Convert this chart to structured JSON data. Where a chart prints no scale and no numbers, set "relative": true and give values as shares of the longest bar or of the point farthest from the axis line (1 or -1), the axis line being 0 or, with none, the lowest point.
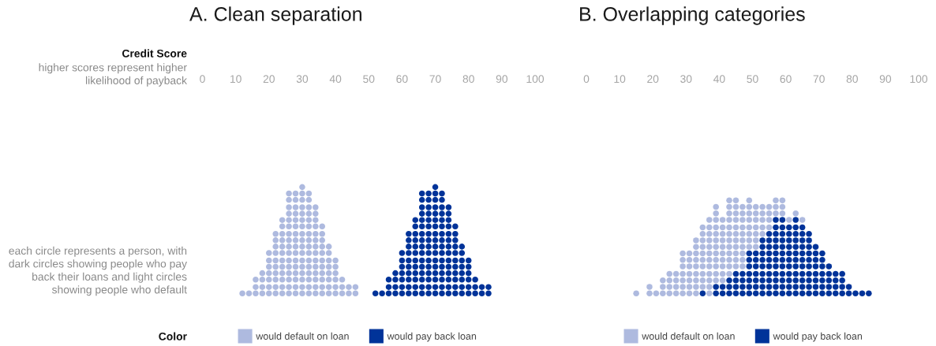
{
  "chart_data": [
    {
      "type": "scatter",
      "title": "A. Clean separation",
      "xlabel": "Credit Score",
      "annotations": [
        "higher scores represent higher\nlikelihood of payback",
        "each circle represents a person, with\ndark circles showing people who pay\nback their loans and light circles\nshowing people who default"
      ],
      "legend_title": "Color",
      "legend": "bottom",
      "marker": "circle",
      "tick_labels": "x",
      "relative": true,
      "xlim": [
        0,
        100
      ],
      "xticks": [
        0,
        10,
        20,
        30,
        40,
        50,
        60,
        70,
        80,
        90,
        100
      ],
      "series": [
        {
          "name": "would default on loan",
          "color": "#aebadf",
          "x": [
            12,
            14,
            16,
            16,
            16,
            18,
            18,
            18,
            18,
            20,
            20,
            20,
            20,
            20,
            20,
            20,
            22,
            22,
            22,
            22,
            22,
            22,
            22,
            22,
            22,
            22,
            24,
            24,
            24,
            24,
            24,
            24,
            24,
            24,
            24,
            24,
            24,
            24,
            26,
            26,
            26,
            26,
            26,
            26,
            26,
            26,
            26,
            26,
            26,
            26,
            26,
            26,
            26,
            26,
            28,
            28,
            28,
            28,
            28,
            28,
            28,
            28,
            28,
            28,
            28,
            28,
            28,
            28,
            28,
            28,
            30,
            30,
            30,
            30,
            30,
            30,
            30,
            30,
            30,
            30,
            30,
            30,
            30,
            30,
            30,
            30,
            30,
            32,
            32,
            32,
            32,
            32,
            32,
            32,
            32,
            32,
            32,
            32,
            32,
            32,
            32,
            32,
            32,
            34,
            34,
            34,
            34,
            34,
            34,
            34,
            34,
            34,
            34,
            34,
            34,
            34,
            34,
            36,
            36,
            36,
            36,
            36,
            36,
            36,
            36,
            36,
            36,
            36,
            38,
            38,
            38,
            38,
            38,
            38,
            38,
            38,
            40,
            40,
            40,
            40,
            40,
            40,
            42,
            42,
            42,
            44,
            44,
            46,
            46
          ],
          "values": [
            0,
            0,
            0,
            0.06,
            0.13,
            0,
            0.06,
            0.13,
            0.19,
            0,
            0.06,
            0.13,
            0.19,
            0.25,
            0.31,
            0.38,
            0,
            0.06,
            0.13,
            0.19,
            0.25,
            0.31,
            0.38,
            0.44,
            0.5,
            0.56,
            0,
            0.06,
            0.13,
            0.19,
            0.25,
            0.31,
            0.38,
            0.44,
            0.5,
            0.56,
            0.63,
            0.69,
            0,
            0.06,
            0.13,
            0.19,
            0.25,
            0.31,
            0.38,
            0.44,
            0.5,
            0.56,
            0.63,
            0.69,
            0.75,
            0.81,
            0.88,
            0.94,
            0,
            0.06,
            0.13,
            0.19,
            0.25,
            0.31,
            0.38,
            0.44,
            0.5,
            0.56,
            0.63,
            0.69,
            0.75,
            0.81,
            0.88,
            0.94,
            0,
            0.06,
            0.13,
            0.19,
            0.25,
            0.31,
            0.38,
            0.44,
            0.5,
            0.56,
            0.63,
            0.69,
            0.75,
            0.81,
            0.88,
            0.94,
            1,
            0,
            0.06,
            0.13,
            0.19,
            0.25,
            0.31,
            0.38,
            0.44,
            0.5,
            0.56,
            0.63,
            0.69,
            0.75,
            0.81,
            0.88,
            0.94,
            0,
            0.06,
            0.13,
            0.19,
            0.25,
            0.31,
            0.38,
            0.44,
            0.5,
            0.56,
            0.63,
            0.69,
            0.75,
            0.81,
            0,
            0.06,
            0.13,
            0.19,
            0.25,
            0.31,
            0.38,
            0.44,
            0.5,
            0.56,
            0.63,
            0,
            0.06,
            0.13,
            0.19,
            0.25,
            0.31,
            0.38,
            0.44,
            0,
            0.06,
            0.13,
            0.19,
            0.25,
            0.31,
            0,
            0.06,
            0.13,
            0,
            0.06,
            0,
            0.06
          ]
        },
        {
          "name": "would pay back loan",
          "color": "#003399",
          "x": [
            52,
            54,
            56,
            56,
            56,
            58,
            58,
            58,
            58,
            60,
            60,
            60,
            60,
            60,
            60,
            60,
            62,
            62,
            62,
            62,
            62,
            62,
            62,
            62,
            62,
            62,
            64,
            64,
            64,
            64,
            64,
            64,
            64,
            64,
            64,
            64,
            64,
            64,
            66,
            66,
            66,
            66,
            66,
            66,
            66,
            66,
            66,
            66,
            66,
            66,
            66,
            66,
            66,
            66,
            68,
            68,
            68,
            68,
            68,
            68,
            68,
            68,
            68,
            68,
            68,
            68,
            68,
            68,
            68,
            68,
            70,
            70,
            70,
            70,
            70,
            70,
            70,
            70,
            70,
            70,
            70,
            70,
            70,
            70,
            70,
            70,
            70,
            72,
            72,
            72,
            72,
            72,
            72,
            72,
            72,
            72,
            72,
            72,
            72,
            72,
            72,
            72,
            72,
            74,
            74,
            74,
            74,
            74,
            74,
            74,
            74,
            74,
            74,
            74,
            74,
            74,
            74,
            76,
            76,
            76,
            76,
            76,
            76,
            76,
            76,
            76,
            76,
            76,
            78,
            78,
            78,
            78,
            78,
            78,
            78,
            78,
            80,
            80,
            80,
            80,
            80,
            80,
            82,
            82,
            82,
            84,
            84,
            86,
            86
          ],
          "values": [
            0,
            0,
            0,
            0.06,
            0.13,
            0,
            0.06,
            0.13,
            0.19,
            0,
            0.06,
            0.13,
            0.19,
            0.25,
            0.31,
            0.38,
            0,
            0.06,
            0.13,
            0.19,
            0.25,
            0.31,
            0.38,
            0.44,
            0.5,
            0.56,
            0,
            0.06,
            0.13,
            0.19,
            0.25,
            0.31,
            0.38,
            0.44,
            0.5,
            0.56,
            0.63,
            0.69,
            0,
            0.06,
            0.13,
            0.19,
            0.25,
            0.31,
            0.38,
            0.44,
            0.5,
            0.56,
            0.63,
            0.69,
            0.75,
            0.81,
            0.88,
            0.94,
            0,
            0.06,
            0.13,
            0.19,
            0.25,
            0.31,
            0.38,
            0.44,
            0.5,
            0.56,
            0.63,
            0.69,
            0.75,
            0.81,
            0.88,
            0.94,
            0,
            0.06,
            0.13,
            0.19,
            0.25,
            0.31,
            0.38,
            0.44,
            0.5,
            0.56,
            0.63,
            0.69,
            0.75,
            0.81,
            0.88,
            0.94,
            1,
            0,
            0.06,
            0.13,
            0.19,
            0.25,
            0.31,
            0.38,
            0.44,
            0.5,
            0.56,
            0.63,
            0.69,
            0.75,
            0.81,
            0.88,
            0.94,
            0,
            0.06,
            0.13,
            0.19,
            0.25,
            0.31,
            0.38,
            0.44,
            0.5,
            0.56,
            0.63,
            0.69,
            0.75,
            0.81,
            0,
            0.06,
            0.13,
            0.19,
            0.25,
            0.31,
            0.38,
            0.44,
            0.5,
            0.56,
            0.63,
            0,
            0.06,
            0.13,
            0.19,
            0.25,
            0.31,
            0.38,
            0.44,
            0,
            0.06,
            0.13,
            0.19,
            0.25,
            0.31,
            0,
            0.06,
            0.13,
            0,
            0.06,
            0,
            0.06
          ]
        }
      ]
    },
    {
      "type": "scatter",
      "title": "B. Overlapping categories",
      "legend": "bottom",
      "marker": "circle",
      "tick_labels": "x",
      "relative": true,
      "xlim": [
        0,
        100
      ],
      "xticks": [
        0,
        10,
        20,
        30,
        40,
        50,
        60,
        70,
        80,
        90,
        100
      ],
      "series": [
        {
          "name": "would default on loan",
          "color": "#aebadf",
          "x": [
            15,
            19,
            19,
            21,
            23,
            23,
            23,
            25,
            25,
            25,
            25,
            27,
            27,
            27,
            27,
            29,
            29,
            29,
            29,
            29,
            29,
            29,
            31,
            31,
            31,
            31,
            31,
            31,
            31,
            33,
            33,
            33,
            33,
            33,
            33,
            33,
            33,
            33,
            35,
            35,
            35,
            35,
            35,
            35,
            35,
            35,
            35,
            35,
            37,
            37,
            37,
            37,
            37,
            37,
            37,
            37,
            37,
            37,
            37,
            37,
            39,
            39,
            39,
            39,
            39,
            39,
            39,
            39,
            39,
            39,
            39,
            39,
            41,
            41,
            41,
            41,
            41,
            41,
            41,
            41,
            41,
            41,
            43,
            43,
            43,
            43,
            43,
            43,
            43,
            43,
            43,
            43,
            43,
            43,
            45,
            45,
            45,
            45,
            45,
            45,
            45,
            45,
            45,
            45,
            45,
            47,
            47,
            47,
            47,
            47,
            47,
            47,
            47,
            47,
            47,
            49,
            49,
            49,
            49,
            49,
            49,
            49,
            49,
            51,
            51,
            51,
            51,
            51,
            51,
            51,
            53,
            53,
            53,
            53,
            53,
            55,
            55,
            55,
            55,
            57,
            57,
            57,
            59,
            59,
            59,
            61,
            63,
            65
          ],
          "values": [
            0,
            0,
            0.07,
            0,
            0,
            0.07,
            0.14,
            0,
            0.07,
            0.14,
            0.21,
            0,
            0.07,
            0.14,
            0.21,
            0,
            0.07,
            0.14,
            0.21,
            0.29,
            0.36,
            0.43,
            0,
            0.07,
            0.14,
            0.21,
            0.29,
            0.36,
            0.43,
            0,
            0.07,
            0.14,
            0.21,
            0.29,
            0.36,
            0.43,
            0.5,
            0.57,
            0.07,
            0.14,
            0.21,
            0.29,
            0.36,
            0.43,
            0.5,
            0.57,
            0.64,
            0.71,
            0,
            0.07,
            0.14,
            0.21,
            0.29,
            0.36,
            0.43,
            0.5,
            0.57,
            0.64,
            0.71,
            0.79,
            0.14,
            0.21,
            0.29,
            0.36,
            0.43,
            0.5,
            0.57,
            0.64,
            0.71,
            0.79,
            0.86,
            0.93,
            0.14,
            0.21,
            0.29,
            0.36,
            0.43,
            0.5,
            0.57,
            0.64,
            0.71,
            0.79,
            0.21,
            0.29,
            0.36,
            0.43,
            0.5,
            0.57,
            0.64,
            0.71,
            0.79,
            0.86,
            0.93,
            1,
            0.29,
            0.36,
            0.43,
            0.5,
            0.57,
            0.64,
            0.71,
            0.79,
            0.86,
            0.93,
            1,
            0.29,
            0.36,
            0.43,
            0.5,
            0.57,
            0.64,
            0.71,
            0.79,
            0.86,
            0.93,
            0.5,
            0.57,
            0.64,
            0.71,
            0.79,
            0.86,
            0.93,
            1,
            0.5,
            0.57,
            0.64,
            0.71,
            0.79,
            0.86,
            0.93,
            0.64,
            0.71,
            0.79,
            0.86,
            0.93,
            0.71,
            0.79,
            0.86,
            0.93,
            0.86,
            0.93,
            1,
            0.86,
            0.93,
            1,
            0.79,
            0.86,
            0.79
          ]
        },
        {
          "name": "would pay back loan",
          "color": "#003399",
          "x": [
            35,
            39,
            39,
            41,
            41,
            43,
            43,
            43,
            45,
            45,
            45,
            45,
            47,
            47,
            47,
            47,
            49,
            49,
            49,
            49,
            49,
            49,
            49,
            51,
            51,
            51,
            51,
            51,
            51,
            51,
            53,
            53,
            53,
            53,
            53,
            53,
            53,
            53,
            53,
            55,
            55,
            55,
            55,
            55,
            55,
            55,
            55,
            55,
            55,
            57,
            57,
            57,
            57,
            57,
            57,
            57,
            57,
            57,
            57,
            57,
            57,
            59,
            59,
            59,
            59,
            59,
            59,
            59,
            59,
            59,
            59,
            59,
            59,
            61,
            61,
            61,
            61,
            61,
            61,
            61,
            61,
            61,
            61,
            61,
            63,
            63,
            63,
            63,
            63,
            63,
            63,
            63,
            63,
            63,
            63,
            63,
            65,
            65,
            65,
            65,
            65,
            65,
            65,
            65,
            65,
            65,
            65,
            67,
            67,
            67,
            67,
            67,
            67,
            67,
            67,
            67,
            67,
            69,
            69,
            69,
            69,
            69,
            69,
            69,
            69,
            71,
            71,
            71,
            71,
            71,
            71,
            71,
            73,
            73,
            73,
            73,
            73,
            75,
            75,
            75,
            75,
            77,
            77,
            77,
            77,
            79,
            79,
            81,
            83,
            85
          ],
          "values": [
            0,
            0,
            0.07,
            0,
            0.07,
            0,
            0.07,
            0.14,
            0,
            0.07,
            0.14,
            0.21,
            0,
            0.07,
            0.14,
            0.21,
            0,
            0.07,
            0.14,
            0.21,
            0.29,
            0.36,
            0.43,
            0,
            0.07,
            0.14,
            0.21,
            0.29,
            0.36,
            0.43,
            0,
            0.07,
            0.14,
            0.21,
            0.29,
            0.36,
            0.43,
            0.5,
            0.57,
            0,
            0.07,
            0.14,
            0.21,
            0.29,
            0.36,
            0.43,
            0.5,
            0.57,
            0.64,
            0,
            0.07,
            0.14,
            0.21,
            0.29,
            0.36,
            0.43,
            0.5,
            0.57,
            0.64,
            0.71,
            0.79,
            0,
            0.07,
            0.14,
            0.21,
            0.29,
            0.36,
            0.43,
            0.5,
            0.57,
            0.64,
            0.71,
            0.79,
            0,
            0.07,
            0.14,
            0.21,
            0.29,
            0.36,
            0.43,
            0.5,
            0.57,
            0.64,
            0.71,
            0,
            0.07,
            0.14,
            0.21,
            0.29,
            0.36,
            0.43,
            0.5,
            0.57,
            0.64,
            0.71,
            0.79,
            0,
            0.07,
            0.14,
            0.21,
            0.29,
            0.36,
            0.43,
            0.5,
            0.57,
            0.64,
            0.71,
            0,
            0.07,
            0.14,
            0.21,
            0.29,
            0.36,
            0.43,
            0.5,
            0.57,
            0.64,
            0,
            0.07,
            0.14,
            0.21,
            0.29,
            0.36,
            0.43,
            0.5,
            0,
            0.07,
            0.14,
            0.21,
            0.29,
            0.36,
            0.43,
            0,
            0.07,
            0.14,
            0.21,
            0.29,
            0,
            0.07,
            0.14,
            0.21,
            0,
            0.07,
            0.14,
            0.21,
            0,
            0.07,
            0,
            0,
            0
          ]
        }
      ]
    }
  ]
}
